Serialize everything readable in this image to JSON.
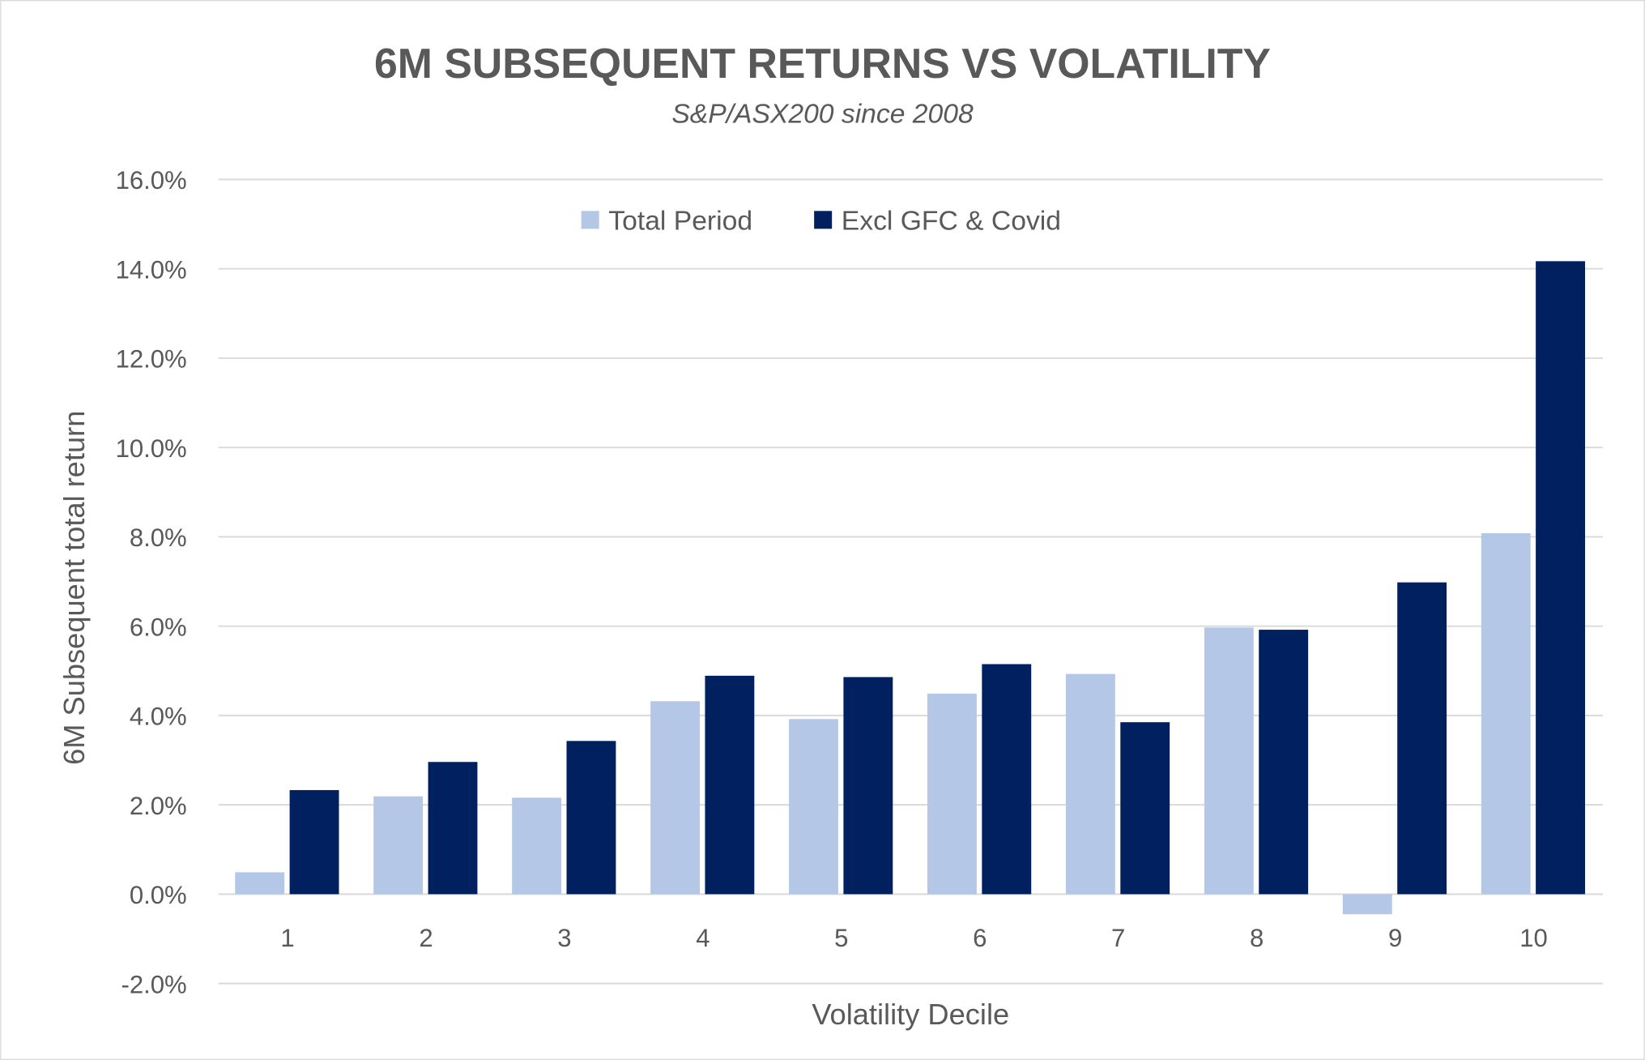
{
  "chart_data": {
    "type": "bar",
    "title": "6M SUBSEQUENT RETURNS VS VOLATILITY",
    "subtitle": "S&P/ASX200 since 2008",
    "xlabel": "Volatility Decile",
    "ylabel": "6M Subsequent total return",
    "categories": [
      "1",
      "2",
      "3",
      "4",
      "5",
      "6",
      "7",
      "8",
      "9",
      "10"
    ],
    "series": [
      {
        "name": "Total Period",
        "color": "#B4C7E7",
        "values": [
          0.49,
          2.19,
          2.16,
          4.32,
          3.92,
          4.49,
          4.93,
          5.97,
          -0.45,
          8.08
        ]
      },
      {
        "name": "Excl GFC & Covid",
        "color": "#002060",
        "values": [
          2.33,
          2.96,
          3.43,
          4.89,
          4.86,
          5.15,
          3.85,
          5.92,
          6.98,
          14.17
        ]
      }
    ],
    "ylim": [
      -2,
      16
    ],
    "yticks": [
      -2,
      0,
      2,
      4,
      6,
      8,
      10,
      12,
      14,
      16
    ],
    "ytick_labels": [
      "-2.0%",
      "0.0%",
      "2.0%",
      "4.0%",
      "6.0%",
      "8.0%",
      "10.0%",
      "12.0%",
      "14.0%",
      "16.0%"
    ],
    "grid": true,
    "legend": "top-center"
  }
}
